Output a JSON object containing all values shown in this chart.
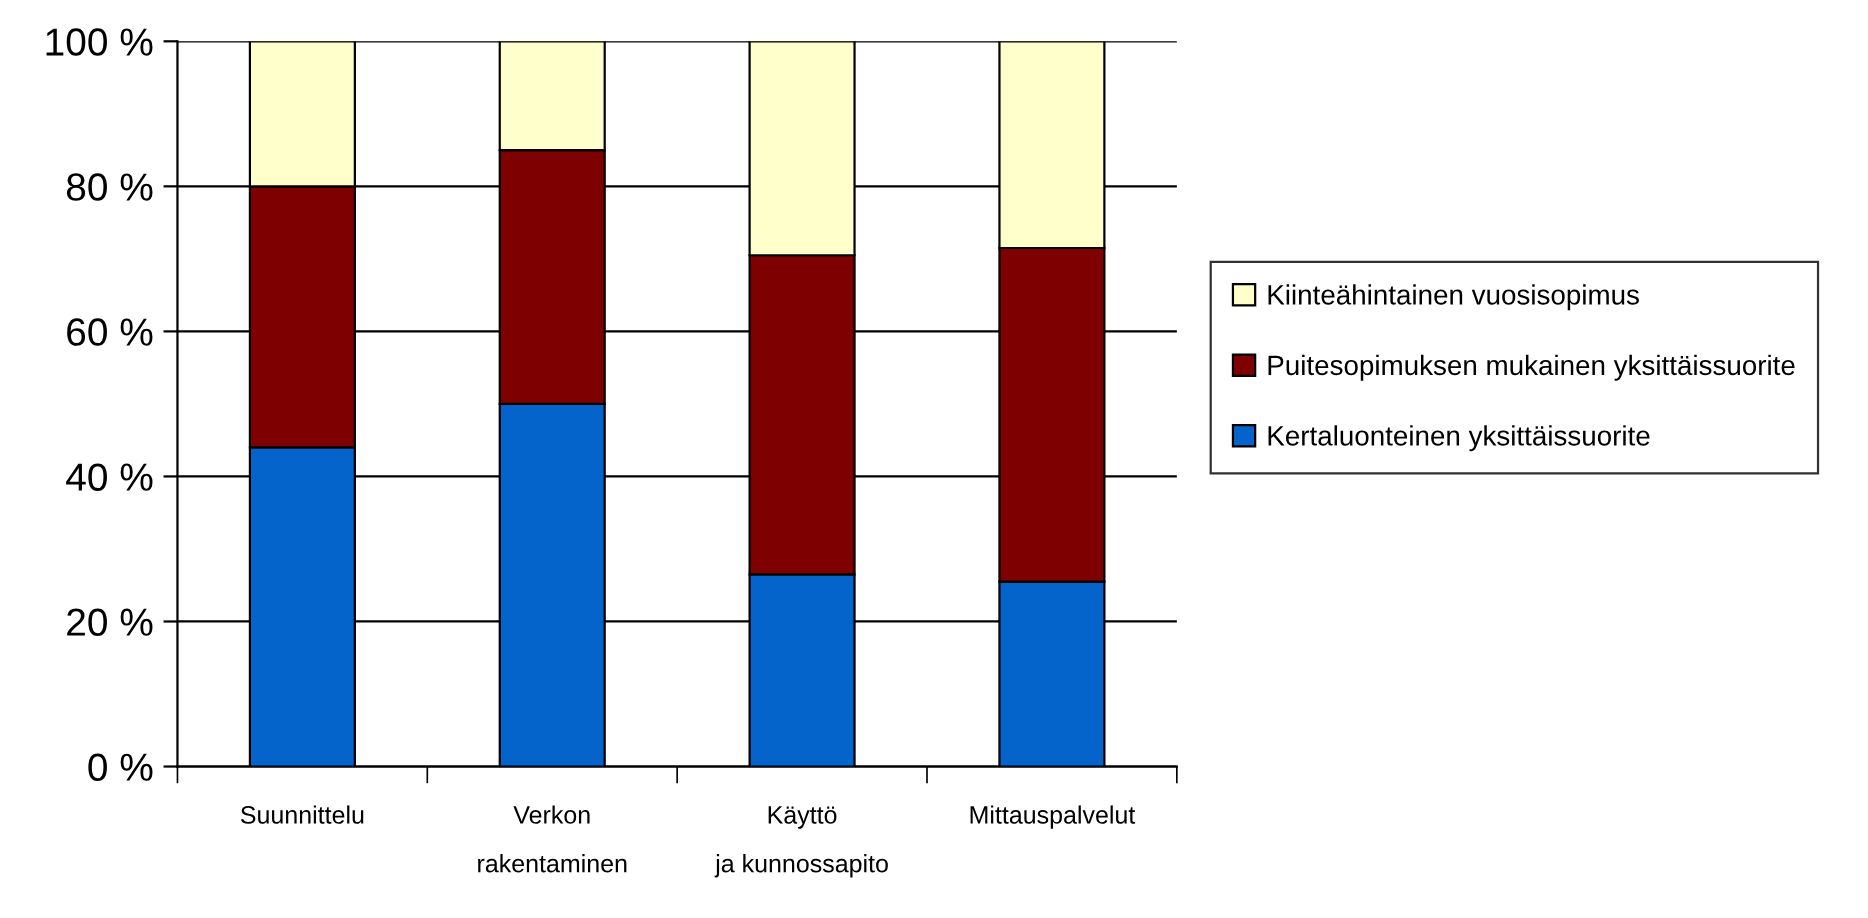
{
  "chart_data": {
    "type": "bar",
    "stacked": true,
    "categories": [
      "Suunnittelu",
      "Verkon rakentaminen",
      "Käyttö ja kunnossapito",
      "Mittauspalvelut"
    ],
    "series": [
      {
        "name": "Kertaluonteinen yksittäissuorite",
        "color": "#0563cc",
        "values": [
          44,
          50,
          26.5,
          25.5
        ]
      },
      {
        "name": "Puitesopimuksen mukainen yksittäissuorite",
        "color": "#7f0000",
        "values": [
          36,
          35,
          44,
          46
        ]
      },
      {
        "name": "Kiinteähintainen vuosisopimus",
        "color": "#ffffcc",
        "values": [
          20,
          15,
          29.5,
          28.5
        ]
      }
    ],
    "ylim": [
      0,
      100
    ],
    "yticks": [
      {
        "value": 0,
        "label": "0 %"
      },
      {
        "value": 20,
        "label": "20 %"
      },
      {
        "value": 40,
        "label": "40 %"
      },
      {
        "value": 60,
        "label": "60 %"
      },
      {
        "value": 80,
        "label": "80 %"
      },
      {
        "value": 100,
        "label": "100 %"
      }
    ],
    "grid": "y",
    "legend": "right"
  }
}
